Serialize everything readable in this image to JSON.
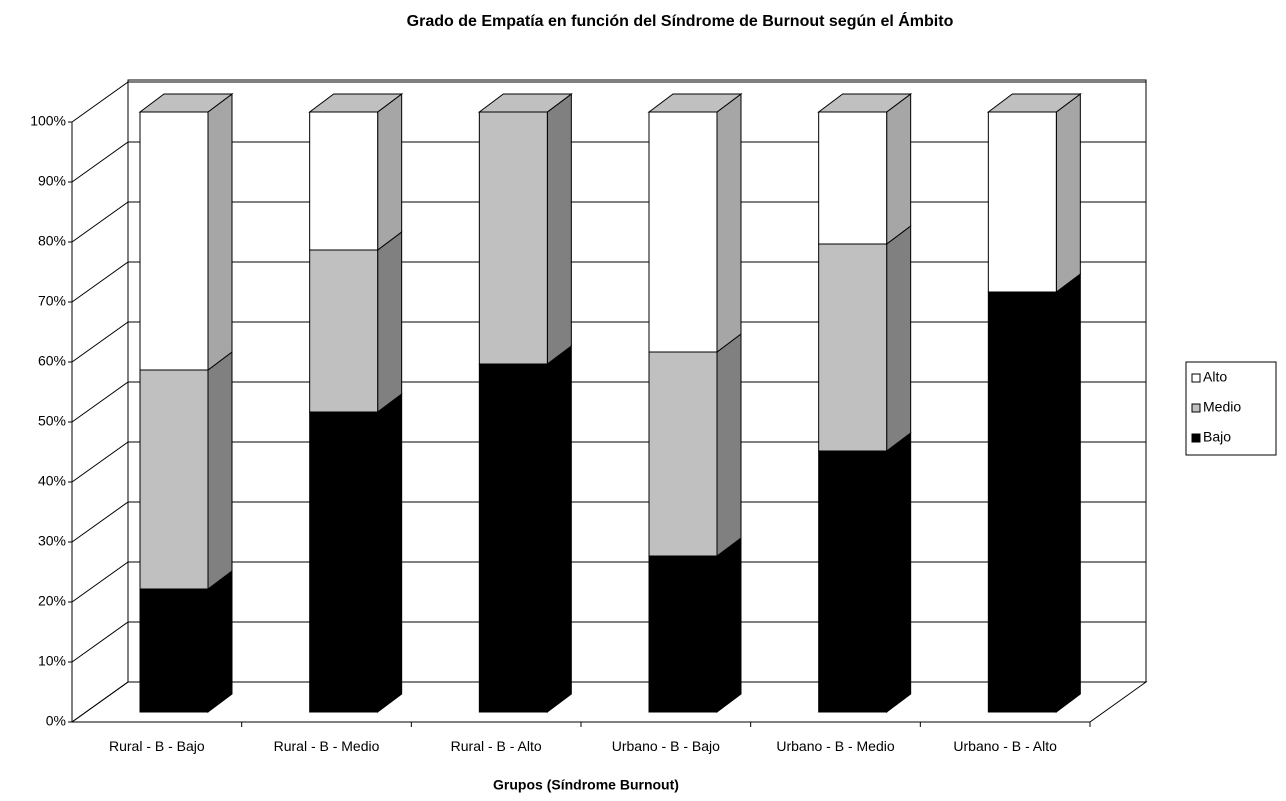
{
  "chart_data": {
    "type": "bar3d_stacked",
    "title": "Grado de Empatía en función del Síndrome de Burnout según el Ámbito",
    "x_label": "Grupos (Síndrome Burnout)",
    "categories": [
      "Rural - B - Bajo",
      "Rural - B - Medio",
      "Rural - B - Alto",
      "Urbano - B - Bajo",
      "Urbano - B - Medio",
      "Urbano - B - Alto"
    ],
    "series": [
      {
        "name": "Alto",
        "color": "#ffffff",
        "side_color": "#a6a6a6",
        "values": [
          43,
          23,
          0,
          40,
          22,
          30
        ]
      },
      {
        "name": "Medio",
        "color": "#c0c0c0",
        "side_color": "#808080",
        "values": [
          36.5,
          27,
          42,
          34,
          34.5,
          0
        ]
      },
      {
        "name": "Bajo",
        "color": "#000000",
        "side_color": "#000000",
        "values": [
          20.5,
          50,
          58,
          26,
          43.5,
          70
        ]
      }
    ],
    "ylim": [
      0,
      100
    ],
    "yticks": [
      {
        "value": 0,
        "label": "0%"
      },
      {
        "value": 10,
        "label": "10%"
      },
      {
        "value": 20,
        "label": "20%"
      },
      {
        "value": 30,
        "label": "30%"
      },
      {
        "value": 40,
        "label": "40%"
      },
      {
        "value": 50,
        "label": "50%"
      },
      {
        "value": 60,
        "label": "60%"
      },
      {
        "value": 70,
        "label": "70%"
      },
      {
        "value": 80,
        "label": "80%"
      },
      {
        "value": 90,
        "label": "90%"
      },
      {
        "value": 100,
        "label": "100%"
      }
    ],
    "grid": true,
    "legend": "right"
  }
}
